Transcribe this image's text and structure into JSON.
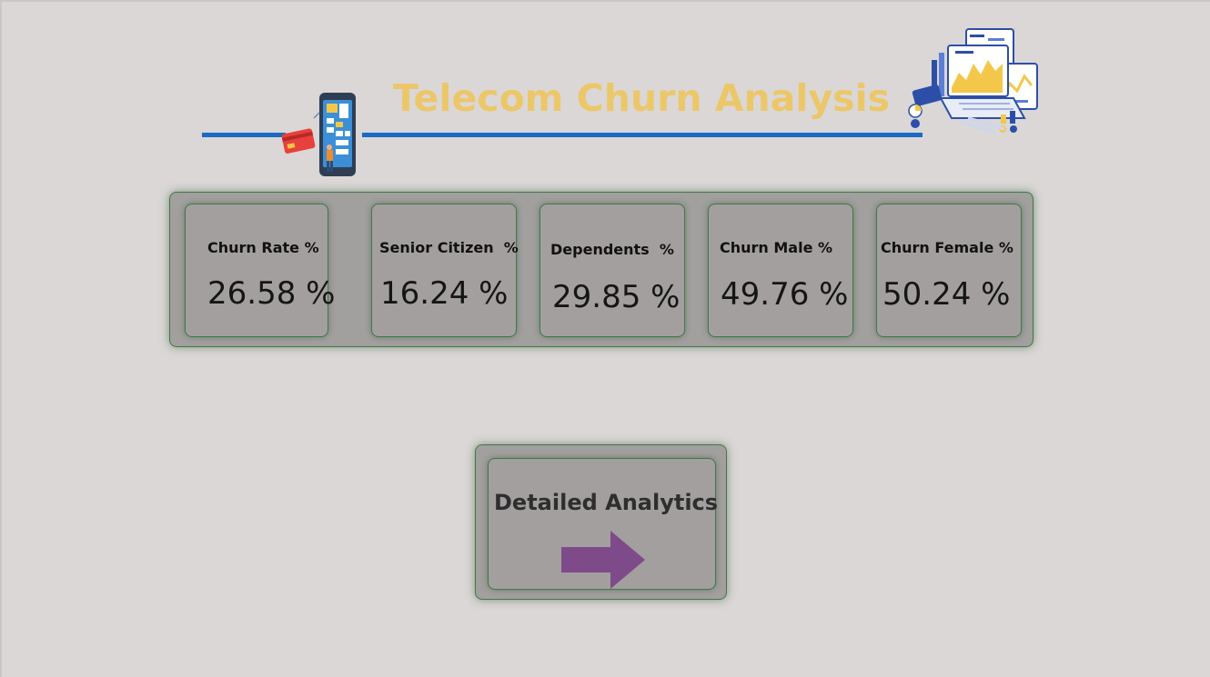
{
  "header": {
    "title": "Telecom Churn Analysis"
  },
  "kpis": [
    {
      "label": "Churn Rate %",
      "value": "26.58 %"
    },
    {
      "label": "Senior Citizen  %",
      "value": "16.24 %"
    },
    {
      "label": "Dependents  %",
      "value": "29.85 %"
    },
    {
      "label": "Churn Male %",
      "value": "49.76 %"
    },
    {
      "label": "Churn Female %",
      "value": "50.24 %"
    }
  ],
  "navigation": {
    "detailed_label": "Detailed Analytics",
    "arrow_icon": "right-arrow-icon",
    "arrow_color": "#7f4a8a"
  },
  "colors": {
    "title": "#ecc76a",
    "rule": "#1c6ac4",
    "background": "#dad7d6",
    "card": "#a39f9f",
    "card_border": "#3d7a45"
  },
  "icons": {
    "phone": "mobile-payment-icon",
    "laptop": "analytics-laptop-icon"
  }
}
